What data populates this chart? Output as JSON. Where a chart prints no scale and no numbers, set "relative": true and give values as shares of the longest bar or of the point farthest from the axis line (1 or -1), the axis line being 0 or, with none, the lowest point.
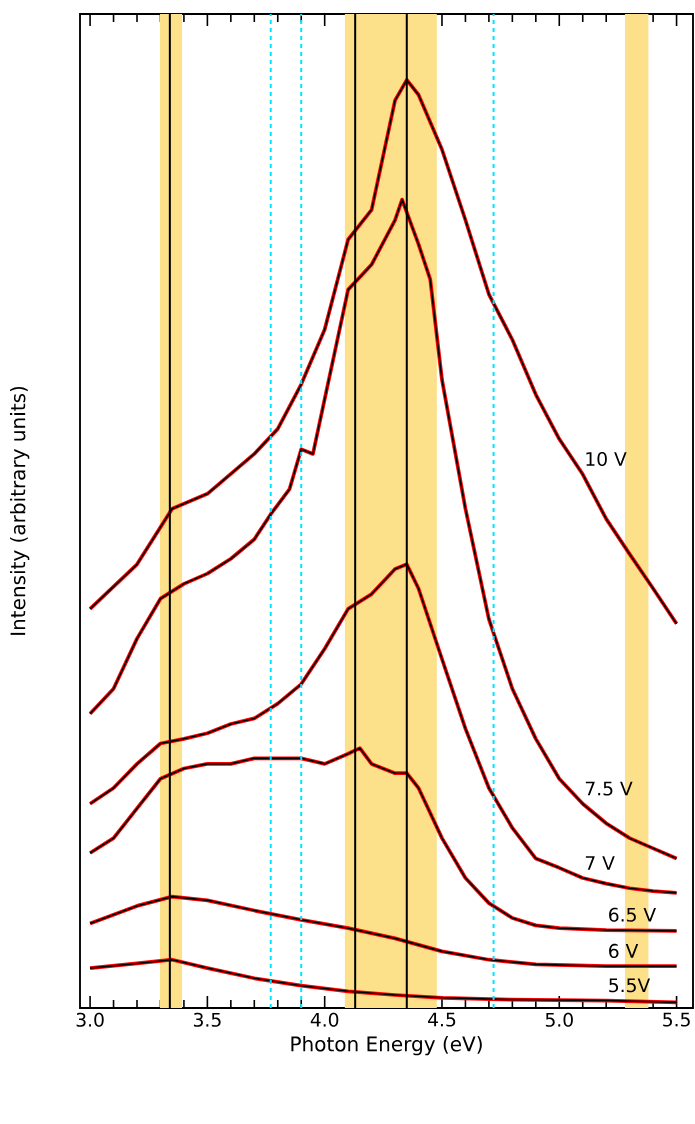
{
  "chart_data": {
    "type": "line",
    "xlabel": "Photon Energy (eV)",
    "ylabel": "Intensity (arbitrary units)",
    "relative": true,
    "xlim": [
      2.957,
      5.57
    ],
    "xticks": [
      {
        "value": 3.0,
        "label": "3.0"
      },
      {
        "value": 3.5,
        "label": "3.5"
      },
      {
        "value": 4.0,
        "label": "4.0"
      },
      {
        "value": 4.5,
        "label": "4.5"
      },
      {
        "value": 5.0,
        "label": "5.0"
      },
      {
        "value": 5.5,
        "label": "5.5"
      }
    ],
    "bands": [
      {
        "axis": "x",
        "from": 3.298,
        "to": 3.392,
        "color": "#fce08a"
      },
      {
        "axis": "x",
        "from": 4.086,
        "to": 4.478,
        "color": "#fce08a"
      },
      {
        "axis": "x",
        "from": 5.28,
        "to": 5.38,
        "color": "#fce08a"
      }
    ],
    "series": [
      {
        "name": "10 V",
        "color": "#ff0000",
        "x": [
          3.0,
          3.2,
          3.35,
          3.5,
          3.7,
          3.8,
          3.9,
          4.0,
          4.1,
          4.2,
          4.3,
          4.35,
          4.4,
          4.5,
          4.6,
          4.7,
          4.8,
          4.9,
          5.0,
          5.1,
          5.2,
          5.3,
          5.4,
          5.5
        ],
        "values": [
          0.43,
          0.478,
          0.538,
          0.554,
          0.597,
          0.624,
          0.672,
          0.731,
          0.828,
          0.86,
          0.978,
          1.0,
          0.984,
          0.925,
          0.849,
          0.769,
          0.72,
          0.661,
          0.613,
          0.575,
          0.527,
          0.489,
          0.452,
          0.414
        ]
      },
      {
        "color": "#000000",
        "x": [
          3.0,
          3.2,
          3.35,
          3.5,
          3.7,
          3.8,
          3.9,
          4.0,
          4.1,
          4.2,
          4.3,
          4.35,
          4.4,
          4.5,
          4.6,
          4.7,
          4.8,
          4.9,
          5.0,
          5.1,
          5.2,
          5.3,
          5.4,
          5.5
        ],
        "values": [
          0.43,
          0.478,
          0.538,
          0.554,
          0.597,
          0.624,
          0.672,
          0.731,
          0.828,
          0.86,
          0.978,
          1.0,
          0.984,
          0.925,
          0.849,
          0.769,
          0.72,
          0.661,
          0.613,
          0.575,
          0.527,
          0.489,
          0.452,
          0.414
        ]
      },
      {
        "name": "7.5 V",
        "color": "#ff0000",
        "x": [
          3.0,
          3.1,
          3.2,
          3.3,
          3.4,
          3.5,
          3.6,
          3.7,
          3.77,
          3.85,
          3.9,
          3.95,
          4.0,
          4.1,
          4.2,
          4.3,
          4.33,
          4.4,
          4.45,
          4.5,
          4.6,
          4.7,
          4.8,
          4.9,
          5.0,
          5.1,
          5.2,
          5.3,
          5.4,
          5.5
        ],
        "values": [
          0.317,
          0.344,
          0.398,
          0.441,
          0.457,
          0.468,
          0.484,
          0.505,
          0.532,
          0.559,
          0.602,
          0.597,
          0.656,
          0.774,
          0.801,
          0.849,
          0.871,
          0.823,
          0.785,
          0.677,
          0.538,
          0.419,
          0.344,
          0.29,
          0.247,
          0.22,
          0.199,
          0.183,
          0.172,
          0.161
        ]
      },
      {
        "color": "#000000",
        "x": [
          3.0,
          3.1,
          3.2,
          3.3,
          3.4,
          3.5,
          3.6,
          3.7,
          3.77,
          3.85,
          3.9,
          3.95,
          4.0,
          4.1,
          4.2,
          4.3,
          4.33,
          4.4,
          4.45,
          4.5,
          4.6,
          4.7,
          4.8,
          4.9,
          5.0,
          5.1,
          5.2,
          5.3,
          5.4,
          5.5
        ],
        "values": [
          0.317,
          0.344,
          0.398,
          0.441,
          0.457,
          0.468,
          0.484,
          0.505,
          0.532,
          0.559,
          0.602,
          0.597,
          0.656,
          0.774,
          0.801,
          0.849,
          0.871,
          0.823,
          0.785,
          0.677,
          0.538,
          0.419,
          0.344,
          0.29,
          0.247,
          0.22,
          0.199,
          0.183,
          0.172,
          0.161
        ]
      },
      {
        "name": "7 V",
        "color": "#ff0000",
        "x": [
          3.0,
          3.1,
          3.2,
          3.3,
          3.4,
          3.5,
          3.6,
          3.7,
          3.8,
          3.9,
          4.0,
          4.1,
          4.2,
          4.3,
          4.35,
          4.4,
          4.5,
          4.6,
          4.7,
          4.8,
          4.9,
          5.0,
          5.1,
          5.2,
          5.3,
          5.4,
          5.5
        ],
        "values": [
          0.22,
          0.237,
          0.263,
          0.285,
          0.29,
          0.296,
          0.306,
          0.312,
          0.328,
          0.349,
          0.387,
          0.43,
          0.446,
          0.473,
          0.478,
          0.452,
          0.376,
          0.301,
          0.237,
          0.194,
          0.161,
          0.151,
          0.14,
          0.134,
          0.129,
          0.126,
          0.124
        ]
      },
      {
        "color": "#000000",
        "x": [
          3.0,
          3.1,
          3.2,
          3.3,
          3.4,
          3.5,
          3.6,
          3.7,
          3.8,
          3.9,
          4.0,
          4.1,
          4.2,
          4.3,
          4.35,
          4.4,
          4.5,
          4.6,
          4.7,
          4.8,
          4.9,
          5.0,
          5.1,
          5.2,
          5.3,
          5.4,
          5.5
        ],
        "values": [
          0.22,
          0.237,
          0.263,
          0.285,
          0.29,
          0.296,
          0.306,
          0.312,
          0.328,
          0.349,
          0.387,
          0.43,
          0.446,
          0.473,
          0.478,
          0.452,
          0.376,
          0.301,
          0.237,
          0.194,
          0.161,
          0.151,
          0.14,
          0.134,
          0.129,
          0.126,
          0.124
        ]
      },
      {
        "name": "6.5 V",
        "color": "#ff0000",
        "x": [
          3.0,
          3.1,
          3.2,
          3.3,
          3.4,
          3.5,
          3.6,
          3.7,
          3.8,
          3.9,
          4.0,
          4.1,
          4.15,
          4.2,
          4.3,
          4.35,
          4.4,
          4.5,
          4.6,
          4.7,
          4.8,
          4.9,
          5.0,
          5.2,
          5.5
        ],
        "values": [
          0.167,
          0.183,
          0.215,
          0.247,
          0.258,
          0.263,
          0.263,
          0.269,
          0.269,
          0.269,
          0.263,
          0.274,
          0.28,
          0.263,
          0.253,
          0.253,
          0.237,
          0.183,
          0.14,
          0.113,
          0.097,
          0.089,
          0.086,
          0.084,
          0.083
        ]
      },
      {
        "color": "#000000",
        "x": [
          3.0,
          3.1,
          3.2,
          3.3,
          3.4,
          3.5,
          3.6,
          3.7,
          3.8,
          3.9,
          4.0,
          4.1,
          4.15,
          4.2,
          4.3,
          4.35,
          4.4,
          4.5,
          4.6,
          4.7,
          4.8,
          4.9,
          5.0,
          5.2,
          5.5
        ],
        "values": [
          0.167,
          0.183,
          0.215,
          0.247,
          0.258,
          0.263,
          0.263,
          0.269,
          0.269,
          0.269,
          0.263,
          0.274,
          0.28,
          0.263,
          0.253,
          0.253,
          0.237,
          0.183,
          0.14,
          0.113,
          0.097,
          0.089,
          0.086,
          0.084,
          0.083
        ]
      },
      {
        "name": "6 V",
        "color": "#ff0000",
        "x": [
          3.0,
          3.2,
          3.35,
          3.5,
          3.7,
          3.9,
          4.1,
          4.3,
          4.5,
          4.7,
          4.9,
          5.2,
          5.5
        ],
        "values": [
          0.091,
          0.11,
          0.12,
          0.116,
          0.105,
          0.095,
          0.086,
          0.075,
          0.061,
          0.052,
          0.047,
          0.045,
          0.045
        ]
      },
      {
        "color": "#000000",
        "x": [
          3.0,
          3.2,
          3.35,
          3.5,
          3.7,
          3.9,
          4.1,
          4.3,
          4.5,
          4.7,
          4.9,
          5.2,
          5.5
        ],
        "values": [
          0.091,
          0.11,
          0.12,
          0.116,
          0.105,
          0.095,
          0.086,
          0.075,
          0.061,
          0.052,
          0.047,
          0.045,
          0.045
        ]
      },
      {
        "name": "5.5V",
        "color": "#ff0000",
        "x": [
          3.0,
          3.2,
          3.35,
          3.5,
          3.7,
          3.9,
          4.1,
          4.3,
          4.5,
          4.8,
          5.2,
          5.5
        ],
        "values": [
          0.043,
          0.048,
          0.052,
          0.043,
          0.032,
          0.024,
          0.018,
          0.014,
          0.011,
          0.009,
          0.008,
          0.006
        ]
      },
      {
        "color": "#000000",
        "x": [
          3.0,
          3.2,
          3.35,
          3.5,
          3.7,
          3.9,
          4.1,
          4.3,
          4.5,
          4.8,
          5.2,
          5.5
        ],
        "values": [
          0.043,
          0.048,
          0.052,
          0.043,
          0.032,
          0.024,
          0.018,
          0.014,
          0.011,
          0.009,
          0.008,
          0.006
        ]
      }
    ],
    "ref_lines": [
      {
        "axis": "x",
        "value": 3.34,
        "color": "#000000",
        "line_style": "solid"
      },
      {
        "axis": "x",
        "value": 4.13,
        "color": "#000000",
        "line_style": "solid"
      },
      {
        "axis": "x",
        "value": 4.35,
        "color": "#000000",
        "line_style": "solid"
      },
      {
        "axis": "x",
        "value": 3.77,
        "color": "#00e5ff",
        "line_style": "dashed"
      },
      {
        "axis": "x",
        "value": 3.9,
        "color": "#00e5ff",
        "line_style": "dashed"
      },
      {
        "axis": "x",
        "value": 4.72,
        "color": "#00e5ff",
        "line_style": "dashed"
      }
    ]
  }
}
